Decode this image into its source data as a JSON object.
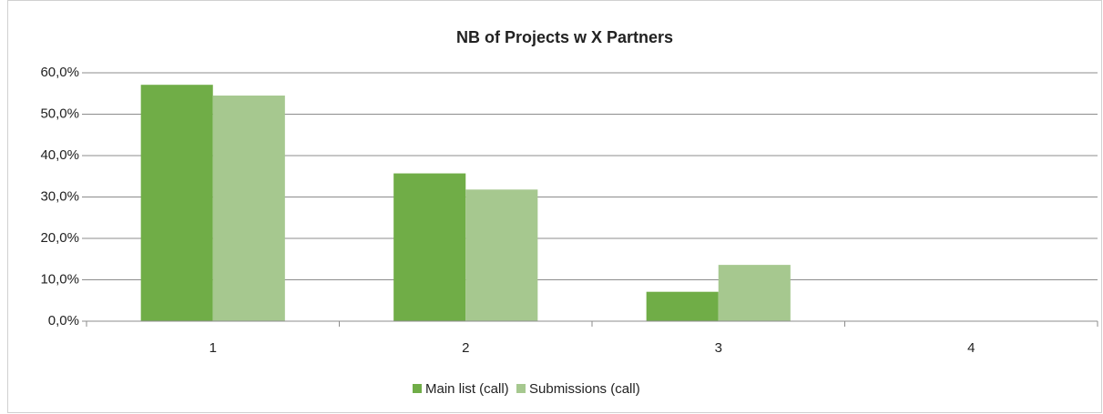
{
  "chart_data": {
    "type": "bar",
    "title": "NB of Projects w X Partners",
    "categories": [
      "1",
      "2",
      "3",
      "4"
    ],
    "series": [
      {
        "name": "Main list (call)",
        "color": "#70ad47",
        "values": [
          57.1,
          35.7,
          7.1,
          0
        ]
      },
      {
        "name": "Submissions (call)",
        "color": "#a6c88f",
        "values": [
          54.5,
          31.8,
          13.6,
          0
        ]
      }
    ],
    "ylim": [
      0,
      60
    ],
    "yticks": [
      {
        "value": 0,
        "label": "0,0%"
      },
      {
        "value": 10,
        "label": "10,0%"
      },
      {
        "value": 20,
        "label": "20,0%"
      },
      {
        "value": 30,
        "label": "30,0%"
      },
      {
        "value": 40,
        "label": "40,0%"
      },
      {
        "value": 50,
        "label": "50,0%"
      },
      {
        "value": 60,
        "label": "60,0%"
      }
    ],
    "grid": true,
    "legend": "bottom"
  }
}
